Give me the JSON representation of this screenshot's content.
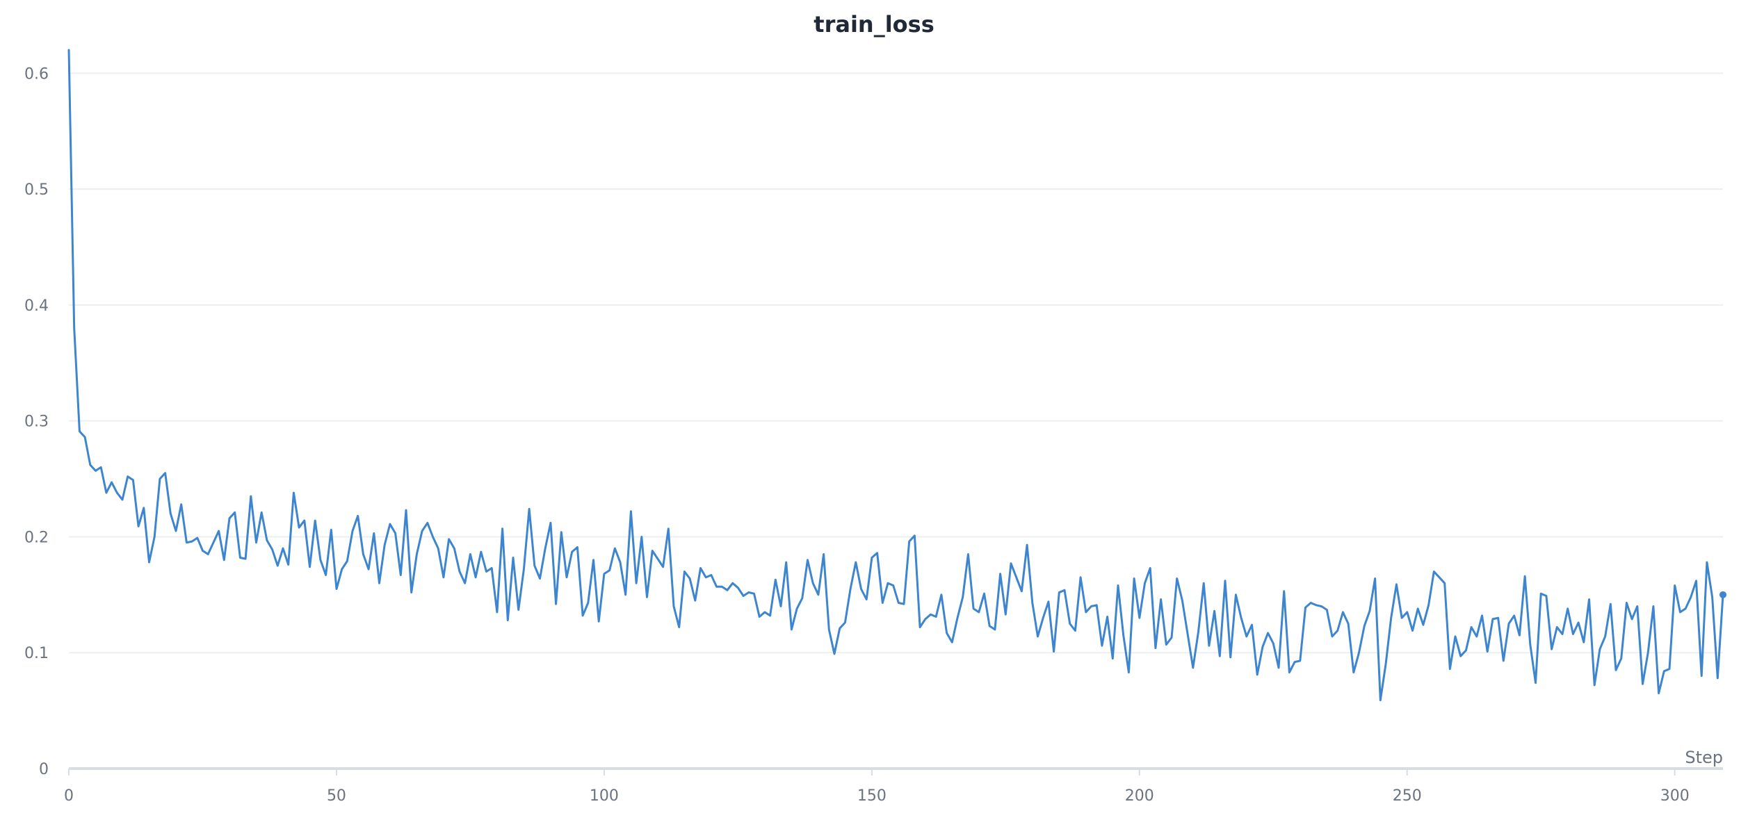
{
  "chart_data": {
    "type": "line",
    "title": "train_loss",
    "xlabel": "Step",
    "ylabel": "",
    "xlim": [
      0,
      309
    ],
    "ylim": [
      0,
      0.62
    ],
    "x_ticks": [
      0,
      50,
      100,
      150,
      200,
      250,
      300
    ],
    "x_tick_labels": [
      "0",
      "50",
      "100",
      "150",
      "200",
      "250",
      "300"
    ],
    "y_ticks": [
      0,
      0.1,
      0.2,
      0.3,
      0.4,
      0.5,
      0.6
    ],
    "y_tick_labels": [
      "0",
      "0.1",
      "0.2",
      "0.3",
      "0.4",
      "0.5",
      "0.6"
    ],
    "grid": true,
    "legend": "none",
    "line_color": "#3d85cf",
    "series": [
      {
        "values": [
          0.62,
          0.38,
          0.291,
          0.286,
          0.262,
          0.257,
          0.26,
          0.238,
          0.247,
          0.238,
          0.232,
          0.252,
          0.249,
          0.209,
          0.225,
          0.178,
          0.2,
          0.25,
          0.255,
          0.22,
          0.205,
          0.228,
          0.195,
          0.196,
          0.199,
          0.188,
          0.185,
          0.195,
          0.205,
          0.18,
          0.216,
          0.221,
          0.182,
          0.181,
          0.235,
          0.195,
          0.221,
          0.197,
          0.189,
          0.175,
          0.19,
          0.176,
          0.238,
          0.208,
          0.214,
          0.174,
          0.214,
          0.18,
          0.167,
          0.206,
          0.155,
          0.172,
          0.179,
          0.205,
          0.218,
          0.185,
          0.172,
          0.203,
          0.16,
          0.193,
          0.211,
          0.203,
          0.167,
          0.223,
          0.152,
          0.185,
          0.205,
          0.212,
          0.2,
          0.19,
          0.165,
          0.198,
          0.19,
          0.17,
          0.16,
          0.185,
          0.165,
          0.187,
          0.17,
          0.173,
          0.135,
          0.207,
          0.128,
          0.182,
          0.137,
          0.172,
          0.224,
          0.175,
          0.164,
          0.19,
          0.212,
          0.142,
          0.204,
          0.165,
          0.187,
          0.191,
          0.132,
          0.143,
          0.18,
          0.127,
          0.168,
          0.171,
          0.19,
          0.178,
          0.15,
          0.222,
          0.16,
          0.2,
          0.148,
          0.188,
          0.181,
          0.174,
          0.207,
          0.14,
          0.122,
          0.17,
          0.164,
          0.145,
          0.173,
          0.165,
          0.167,
          0.157,
          0.157,
          0.154,
          0.16,
          0.156,
          0.149,
          0.152,
          0.151,
          0.131,
          0.135,
          0.132,
          0.163,
          0.14,
          0.178,
          0.12,
          0.138,
          0.147,
          0.18,
          0.16,
          0.15,
          0.185,
          0.12,
          0.099,
          0.121,
          0.126,
          0.155,
          0.178,
          0.155,
          0.146,
          0.182,
          0.186,
          0.143,
          0.16,
          0.158,
          0.143,
          0.142,
          0.196,
          0.201,
          0.122,
          0.129,
          0.133,
          0.131,
          0.15,
          0.117,
          0.109,
          0.13,
          0.148,
          0.185,
          0.138,
          0.135,
          0.151,
          0.123,
          0.12,
          0.168,
          0.133,
          0.177,
          0.165,
          0.153,
          0.193,
          0.143,
          0.114,
          0.13,
          0.144,
          0.101,
          0.152,
          0.154,
          0.125,
          0.119,
          0.165,
          0.135,
          0.14,
          0.141,
          0.106,
          0.131,
          0.095,
          0.158,
          0.115,
          0.083,
          0.164,
          0.13,
          0.16,
          0.173,
          0.104,
          0.146,
          0.107,
          0.113,
          0.164,
          0.145,
          0.116,
          0.087,
          0.118,
          0.16,
          0.106,
          0.136,
          0.097,
          0.162,
          0.096,
          0.15,
          0.13,
          0.114,
          0.124,
          0.081,
          0.105,
          0.117,
          0.108,
          0.087,
          0.153,
          0.083,
          0.092,
          0.093,
          0.139,
          0.143,
          0.141,
          0.14,
          0.137,
          0.114,
          0.119,
          0.135,
          0.125,
          0.083,
          0.1,
          0.123,
          0.136,
          0.164,
          0.059,
          0.09,
          0.13,
          0.159,
          0.13,
          0.135,
          0.119,
          0.138,
          0.124,
          0.141,
          0.17,
          0.165,
          0.16,
          0.086,
          0.114,
          0.097,
          0.102,
          0.122,
          0.114,
          0.132,
          0.101,
          0.129,
          0.13,
          0.093,
          0.125,
          0.132,
          0.115,
          0.166,
          0.107,
          0.074,
          0.151,
          0.149,
          0.103,
          0.122,
          0.116,
          0.138,
          0.116,
          0.126,
          0.109,
          0.146,
          0.072,
          0.103,
          0.114,
          0.142,
          0.085,
          0.095,
          0.143,
          0.129,
          0.14,
          0.073,
          0.1,
          0.14,
          0.065,
          0.084,
          0.086,
          0.158,
          0.135,
          0.138,
          0.148,
          0.162,
          0.08,
          0.178,
          0.148,
          0.078,
          0.15
        ]
      }
    ]
  }
}
